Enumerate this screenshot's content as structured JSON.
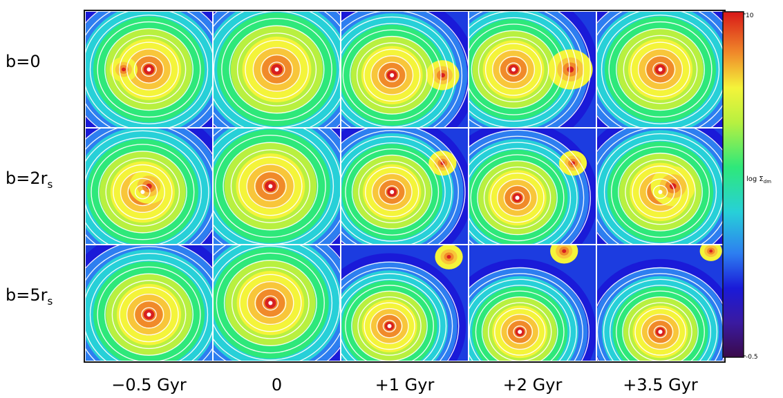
{
  "chart_data": {
    "type": "heatmap",
    "description_note": "",
    "rows": [
      {
        "label": "b=0"
      },
      {
        "label": "b=2r",
        "subscript": "s"
      },
      {
        "label": "b=5r",
        "subscript": "s"
      }
    ],
    "columns": [
      "−0.5 Gyr",
      "0",
      "+1 Gyr",
      "+2 Gyr",
      "+3.5 Gyr"
    ],
    "colorbar": {
      "label": "log Σ",
      "label_subscript": "dm",
      "top_tick": "10",
      "bottom_tick": "-0.5"
    },
    "panels": [
      [
        {
          "peaks": [
            [
              0.5,
              0.5,
              1.0
            ],
            [
              0.3,
              0.5,
              0.5
            ]
          ],
          "spread": 0.42
        },
        {
          "peaks": [
            [
              0.5,
              0.5,
              0.8
            ]
          ],
          "spread": 0.45
        },
        {
          "peaks": [
            [
              0.4,
              0.55,
              1.0
            ],
            [
              0.8,
              0.55,
              0.6
            ]
          ],
          "spread": 0.4
        },
        {
          "peaks": [
            [
              0.35,
              0.5,
              1.0
            ],
            [
              0.8,
              0.5,
              0.8
            ]
          ],
          "spread": 0.4
        },
        {
          "peaks": [
            [
              0.5,
              0.5,
              1.0
            ]
          ],
          "spread": 0.42
        }
      ],
      [
        {
          "peaks": [
            [
              0.45,
              0.55,
              1.0
            ],
            [
              0.5,
              0.5,
              0.7
            ]
          ],
          "spread": 0.42
        },
        {
          "peaks": [
            [
              0.45,
              0.5,
              0.9
            ]
          ],
          "spread": 0.45
        },
        {
          "peaks": [
            [
              0.4,
              0.55,
              1.0
            ],
            [
              0.8,
              0.3,
              0.5
            ]
          ],
          "spread": 0.38
        },
        {
          "peaks": [
            [
              0.38,
              0.6,
              1.0
            ],
            [
              0.82,
              0.3,
              0.5
            ]
          ],
          "spread": 0.38
        },
        {
          "peaks": [
            [
              0.5,
              0.55,
              1.0
            ],
            [
              0.6,
              0.5,
              0.8
            ]
          ],
          "spread": 0.4
        }
      ],
      [
        {
          "peaks": [
            [
              0.5,
              0.6,
              1.0
            ]
          ],
          "spread": 0.42
        },
        {
          "peaks": [
            [
              0.45,
              0.5,
              0.9
            ]
          ],
          "spread": 0.44
        },
        {
          "peaks": [
            [
              0.38,
              0.7,
              1.0
            ],
            [
              0.85,
              0.1,
              0.5
            ]
          ],
          "spread": 0.36
        },
        {
          "peaks": [
            [
              0.4,
              0.75,
              1.0
            ],
            [
              0.75,
              0.05,
              0.5
            ]
          ],
          "spread": 0.36
        },
        {
          "peaks": [
            [
              0.5,
              0.75,
              1.0
            ],
            [
              0.9,
              0.05,
              0.4
            ]
          ],
          "spread": 0.36
        }
      ]
    ]
  }
}
